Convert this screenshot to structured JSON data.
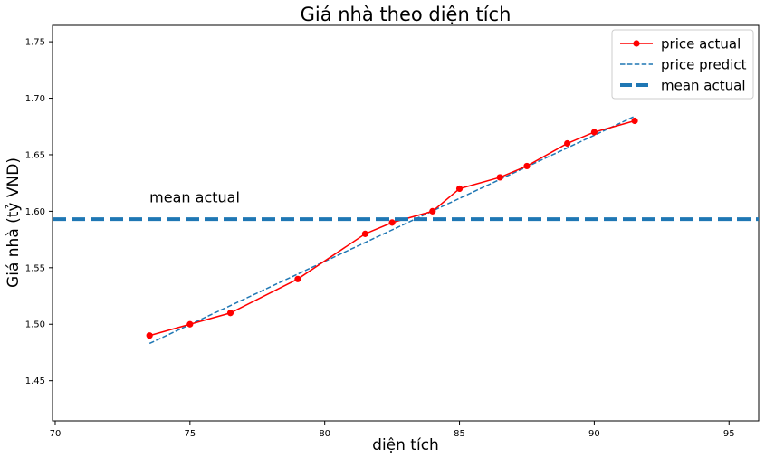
{
  "chart_data": {
    "type": "line",
    "title": "Giá nhà theo diện tích",
    "xlabel": "diện tích",
    "ylabel": "Giá nhà (tỷ VND)",
    "xlim": [
      69.9,
      96.1
    ],
    "ylim": [
      1.4145,
      1.7645
    ],
    "xticks": [
      70,
      75,
      80,
      85,
      90,
      95
    ],
    "xtick_labels": [
      "70",
      "75",
      "80",
      "85",
      "90",
      "95"
    ],
    "yticks": [
      1.45,
      1.5,
      1.55,
      1.6,
      1.65,
      1.7,
      1.75
    ],
    "ytick_labels": [
      "1.45",
      "1.50",
      "1.55",
      "1.60",
      "1.65",
      "1.70",
      "1.75"
    ],
    "grid": false,
    "legend_position": "top-right",
    "series": [
      {
        "name": "price actual",
        "style": "solid-with-markers",
        "color": "#ff0000",
        "x": [
          73.5,
          75,
          76.5,
          79,
          81.5,
          82.5,
          84,
          85,
          86.5,
          87.5,
          89,
          90,
          91.5
        ],
        "y": [
          1.49,
          1.5,
          1.51,
          1.54,
          1.58,
          1.59,
          1.6,
          1.62,
          1.63,
          1.64,
          1.66,
          1.67,
          1.68
        ]
      },
      {
        "name": "price predict",
        "style": "dashed",
        "color": "#1f77b4",
        "x": [
          73.5,
          91.5
        ],
        "y": [
          1.483,
          1.684
        ]
      }
    ],
    "reference_lines": [
      {
        "name": "mean actual",
        "orientation": "horizontal",
        "y": 1.593,
        "style": "thick-dashed",
        "color": "#1f77b4"
      }
    ],
    "annotations": [
      {
        "text": "mean actual",
        "x": 73.5,
        "y": 1.608
      }
    ]
  }
}
